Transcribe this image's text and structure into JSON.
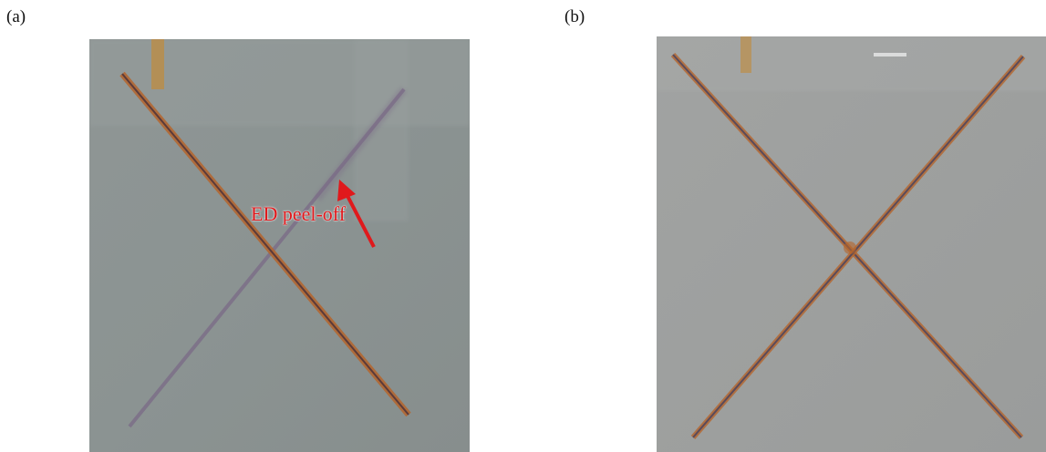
{
  "panels": [
    {
      "label": "(a)",
      "annotation": "ED peel-off"
    },
    {
      "label": "(b)"
    }
  ],
  "colors": {
    "panel_a_bg": "#8c9493",
    "panel_b_bg": "#9ea09f",
    "scribe_rust": "#b5652c",
    "scribe_dark": "#5a3a3a",
    "peel_off": "#7a6a86",
    "arrow": "#e0191c"
  }
}
